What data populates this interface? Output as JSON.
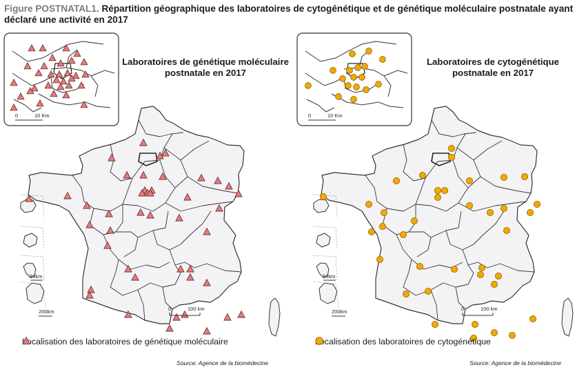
{
  "figure": {
    "label": "Figure POSTNATAL1.",
    "title": " Répartition géographique des laboratoires de cytogénétique et de génétique moléculaire postnatale ayant déclaré une activité en 2017"
  },
  "maps": [
    {
      "id": "molecular",
      "title_line1": "Laboratoires de génétique moléculaire",
      "title_line2": "postnatale en 2017",
      "legend": "Localisation des laboratoires de génétique moléculaire",
      "source": "Source: Agence de la biomédecine",
      "inset_scale": "10 Km",
      "inset_scale_zero": "0",
      "main_scale_zero": "0",
      "main_scale": "100 km",
      "dom_scale_small": "50km",
      "dom_scale_large": "200km",
      "marker": "triangle",
      "marker_color": "#e87b7b",
      "marker_stroke": "#5a2a2a"
    },
    {
      "id": "cyto",
      "title_line1": "Laboratoires de cytogénétique",
      "title_line2": "postnatale en 2017",
      "legend": "Localisation des laboratoires de cytogénétique",
      "source": "Source: Agence de la biomédecine",
      "inset_scale": "10 Km",
      "inset_scale_zero": "0",
      "main_scale_zero": "0",
      "main_scale": "100 km",
      "dom_scale_small": "50km",
      "dom_scale_large": "200km",
      "marker": "circle",
      "marker_color": "#f2a900",
      "marker_stroke": "#8a6000"
    }
  ]
}
